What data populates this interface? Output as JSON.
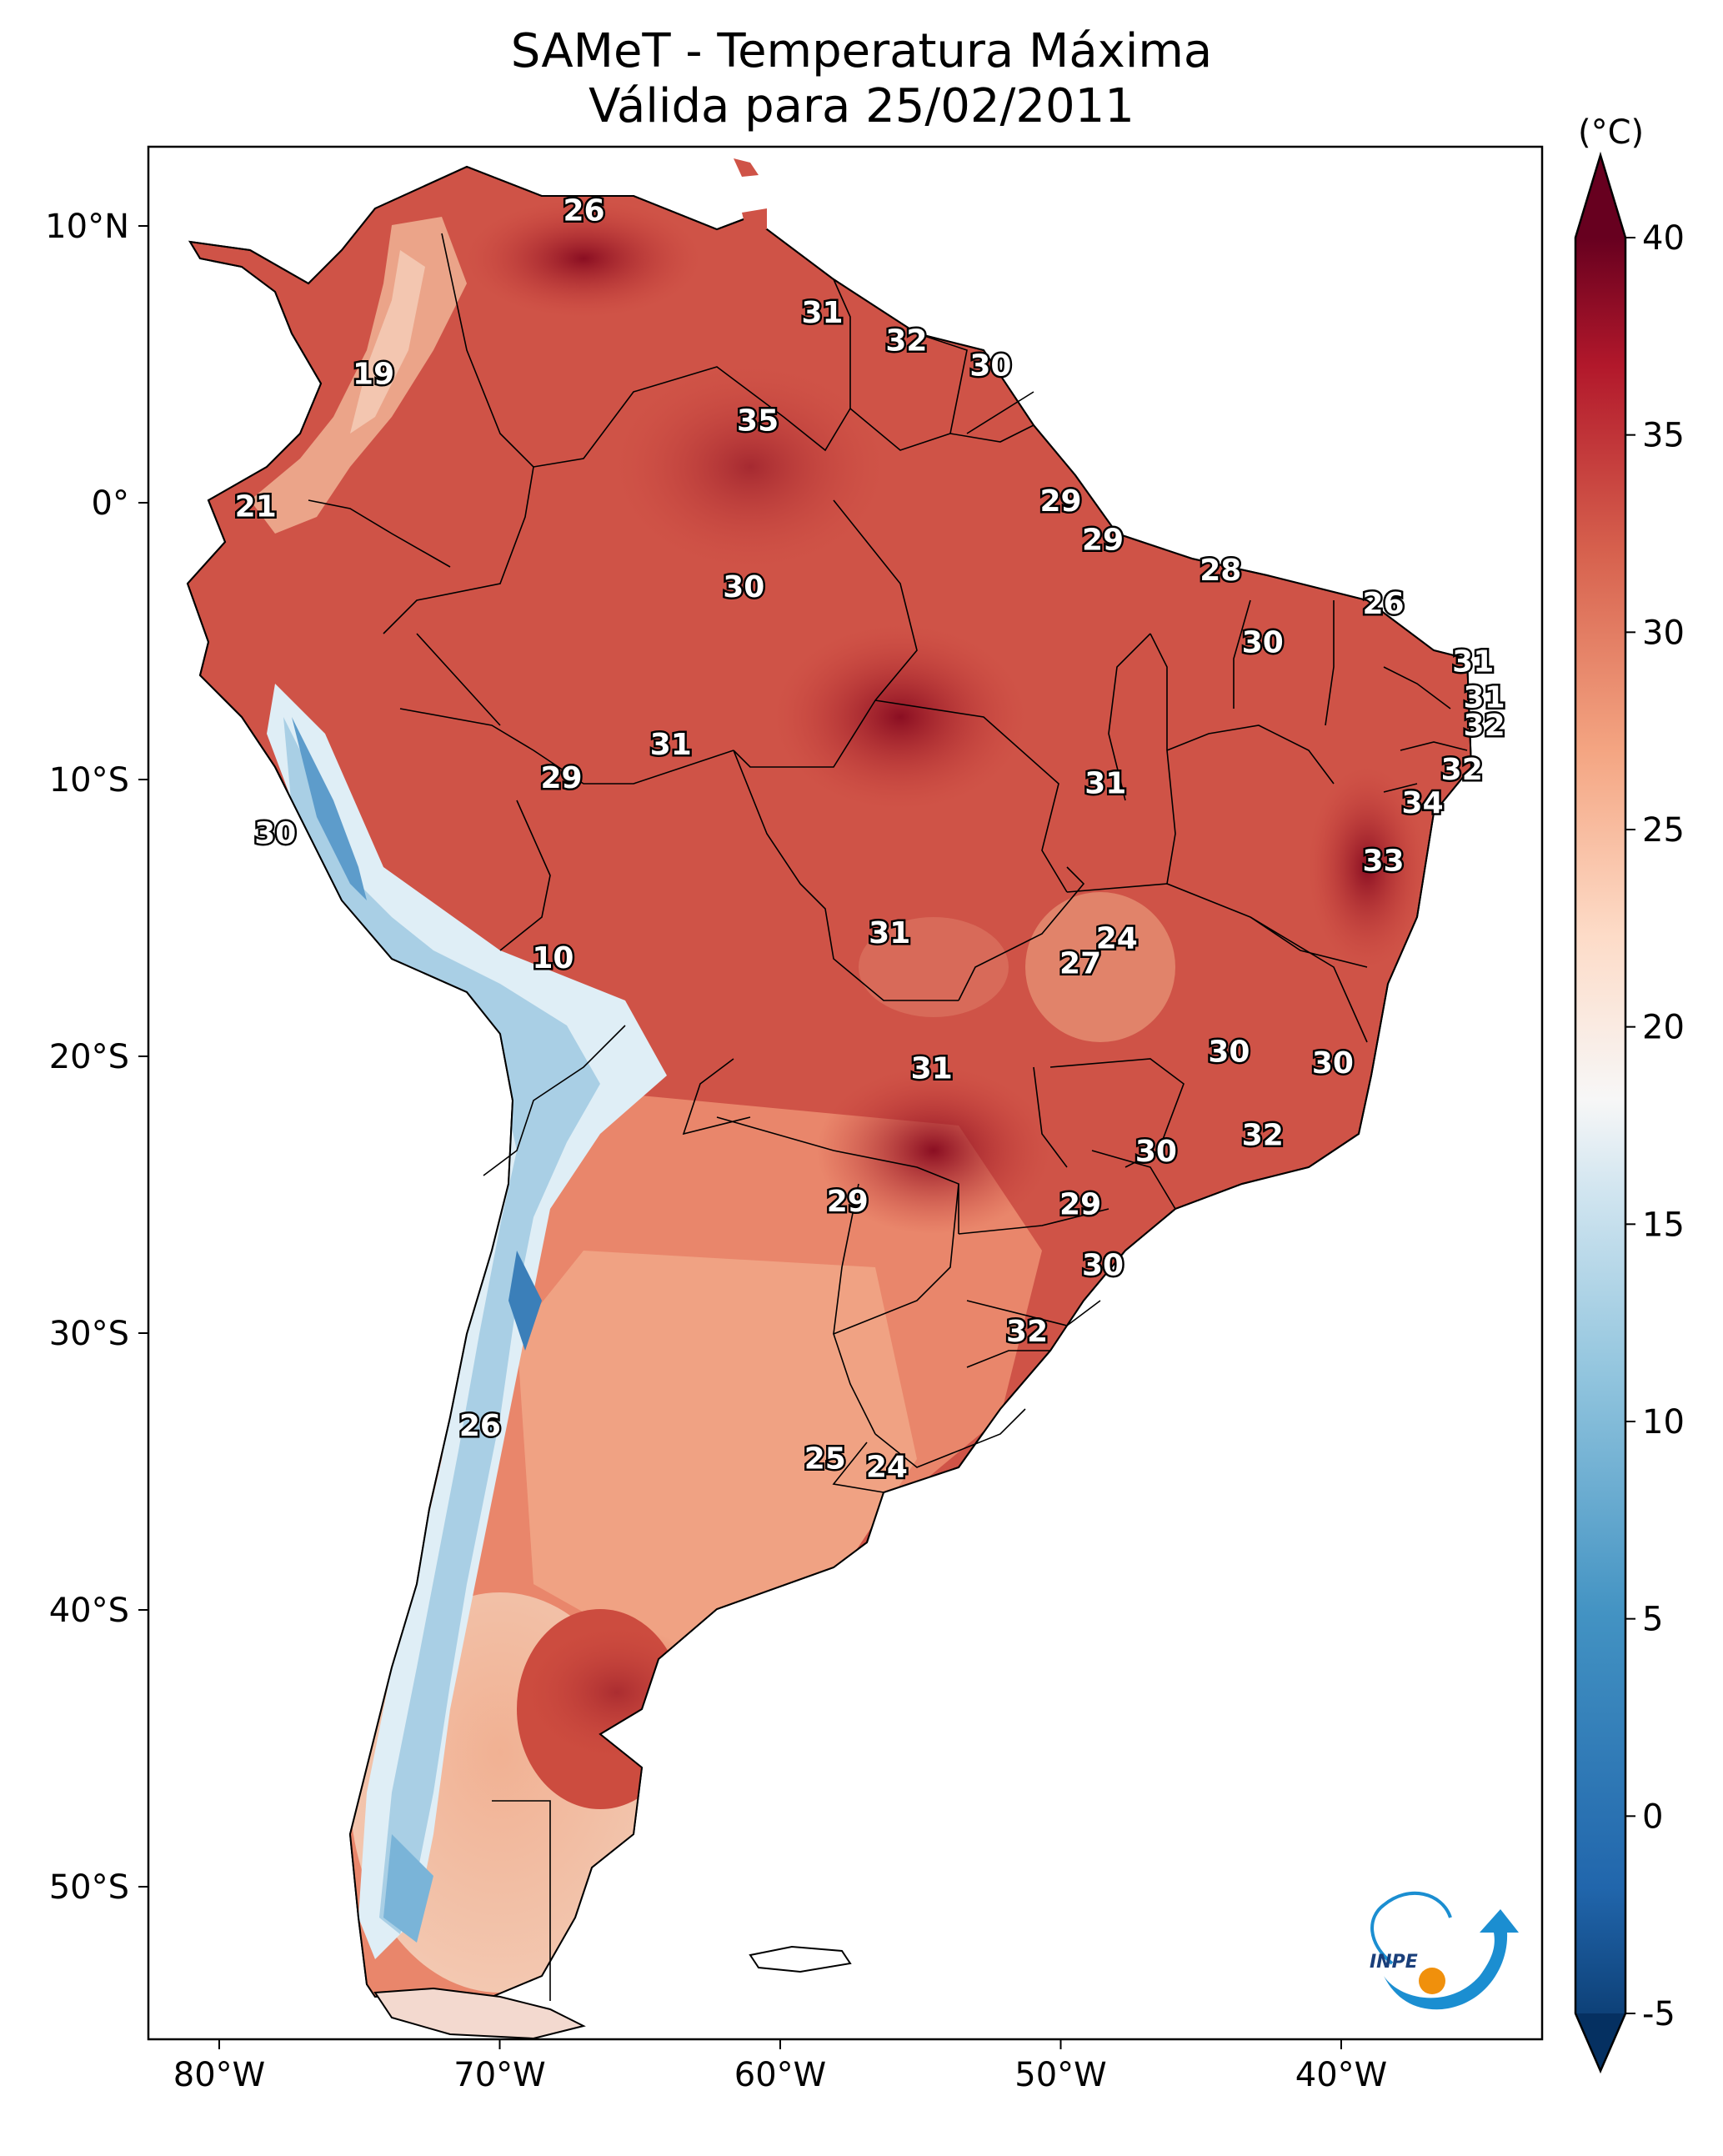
{
  "map": {
    "title_line1": "SAMeT - Temperatura Máxima",
    "title_line2": "Válida para 25/02/2011",
    "colorbar_unit": "(°C)",
    "logo_text": "INPE",
    "lon_ticks": [
      "80°W",
      "70°W",
      "60°W",
      "50°W",
      "40°W"
    ],
    "lat_ticks": [
      "10°N",
      "0°",
      "10°S",
      "20°S",
      "30°S",
      "40°S",
      "50°S"
    ],
    "colorbar_ticks": [
      "40",
      "35",
      "30",
      "25",
      "20",
      "15",
      "10",
      "5",
      "0",
      "-5"
    ],
    "colorbar_min": -5,
    "colorbar_max": 40,
    "colors": {
      "hot": "#67001f",
      "warm": "#d6604d",
      "neutral": "#f7f7f7",
      "cool": "#4393c3",
      "cold": "#053061"
    },
    "station_labels": [
      {
        "text": "26",
        "lon": -67.0,
        "lat": 10.5
      },
      {
        "text": "19",
        "lon": -74.5,
        "lat": 4.6
      },
      {
        "text": "31",
        "lon": -58.5,
        "lat": 6.8
      },
      {
        "text": "32",
        "lon": -55.5,
        "lat": 5.8
      },
      {
        "text": "30",
        "lon": -52.5,
        "lat": 4.9
      },
      {
        "text": "35",
        "lon": -60.8,
        "lat": 2.9
      },
      {
        "text": "21",
        "lon": -78.7,
        "lat": -0.2
      },
      {
        "text": "29",
        "lon": -50.0,
        "lat": 0.0
      },
      {
        "text": "30",
        "lon": -61.3,
        "lat": -3.1
      },
      {
        "text": "29",
        "lon": -48.5,
        "lat": -1.4
      },
      {
        "text": "28",
        "lon": -44.3,
        "lat": -2.5
      },
      {
        "text": "26",
        "lon": -38.5,
        "lat": -3.7
      },
      {
        "text": "30",
        "lon": -42.8,
        "lat": -5.1
      },
      {
        "text": "31",
        "lon": -35.3,
        "lat": -5.8
      },
      {
        "text": "31",
        "lon": -34.9,
        "lat": -7.1
      },
      {
        "text": "32",
        "lon": -34.9,
        "lat": -8.1
      },
      {
        "text": "31",
        "lon": -63.9,
        "lat": -8.8
      },
      {
        "text": "29",
        "lon": -67.8,
        "lat": -10.0
      },
      {
        "text": "31",
        "lon": -48.4,
        "lat": -10.2
      },
      {
        "text": "32",
        "lon": -35.7,
        "lat": -9.7
      },
      {
        "text": "30",
        "lon": -78.0,
        "lat": -12.0
      },
      {
        "text": "34",
        "lon": -37.1,
        "lat": -10.9
      },
      {
        "text": "33",
        "lon": -38.5,
        "lat": -13.0
      },
      {
        "text": "31",
        "lon": -56.1,
        "lat": -15.6
      },
      {
        "text": "24",
        "lon": -48.0,
        "lat": -15.8
      },
      {
        "text": "27",
        "lon": -49.3,
        "lat": -16.7
      },
      {
        "text": "10",
        "lon": -68.1,
        "lat": -16.5
      },
      {
        "text": "30",
        "lon": -44.0,
        "lat": -19.9
      },
      {
        "text": "30",
        "lon": -40.3,
        "lat": -20.3
      },
      {
        "text": "31",
        "lon": -54.6,
        "lat": -20.5
      },
      {
        "text": "32",
        "lon": -42.8,
        "lat": -22.9
      },
      {
        "text": "30",
        "lon": -46.6,
        "lat": -23.5
      },
      {
        "text": "29",
        "lon": -57.6,
        "lat": -25.3
      },
      {
        "text": "29",
        "lon": -49.3,
        "lat": -25.4
      },
      {
        "text": "30",
        "lon": -48.5,
        "lat": -27.6
      },
      {
        "text": "32",
        "lon": -51.2,
        "lat": -30.0
      },
      {
        "text": "26",
        "lon": -70.7,
        "lat": -33.4
      },
      {
        "text": "25",
        "lon": -58.4,
        "lat": -34.6
      },
      {
        "text": "24",
        "lon": -56.2,
        "lat": -34.9
      }
    ]
  }
}
